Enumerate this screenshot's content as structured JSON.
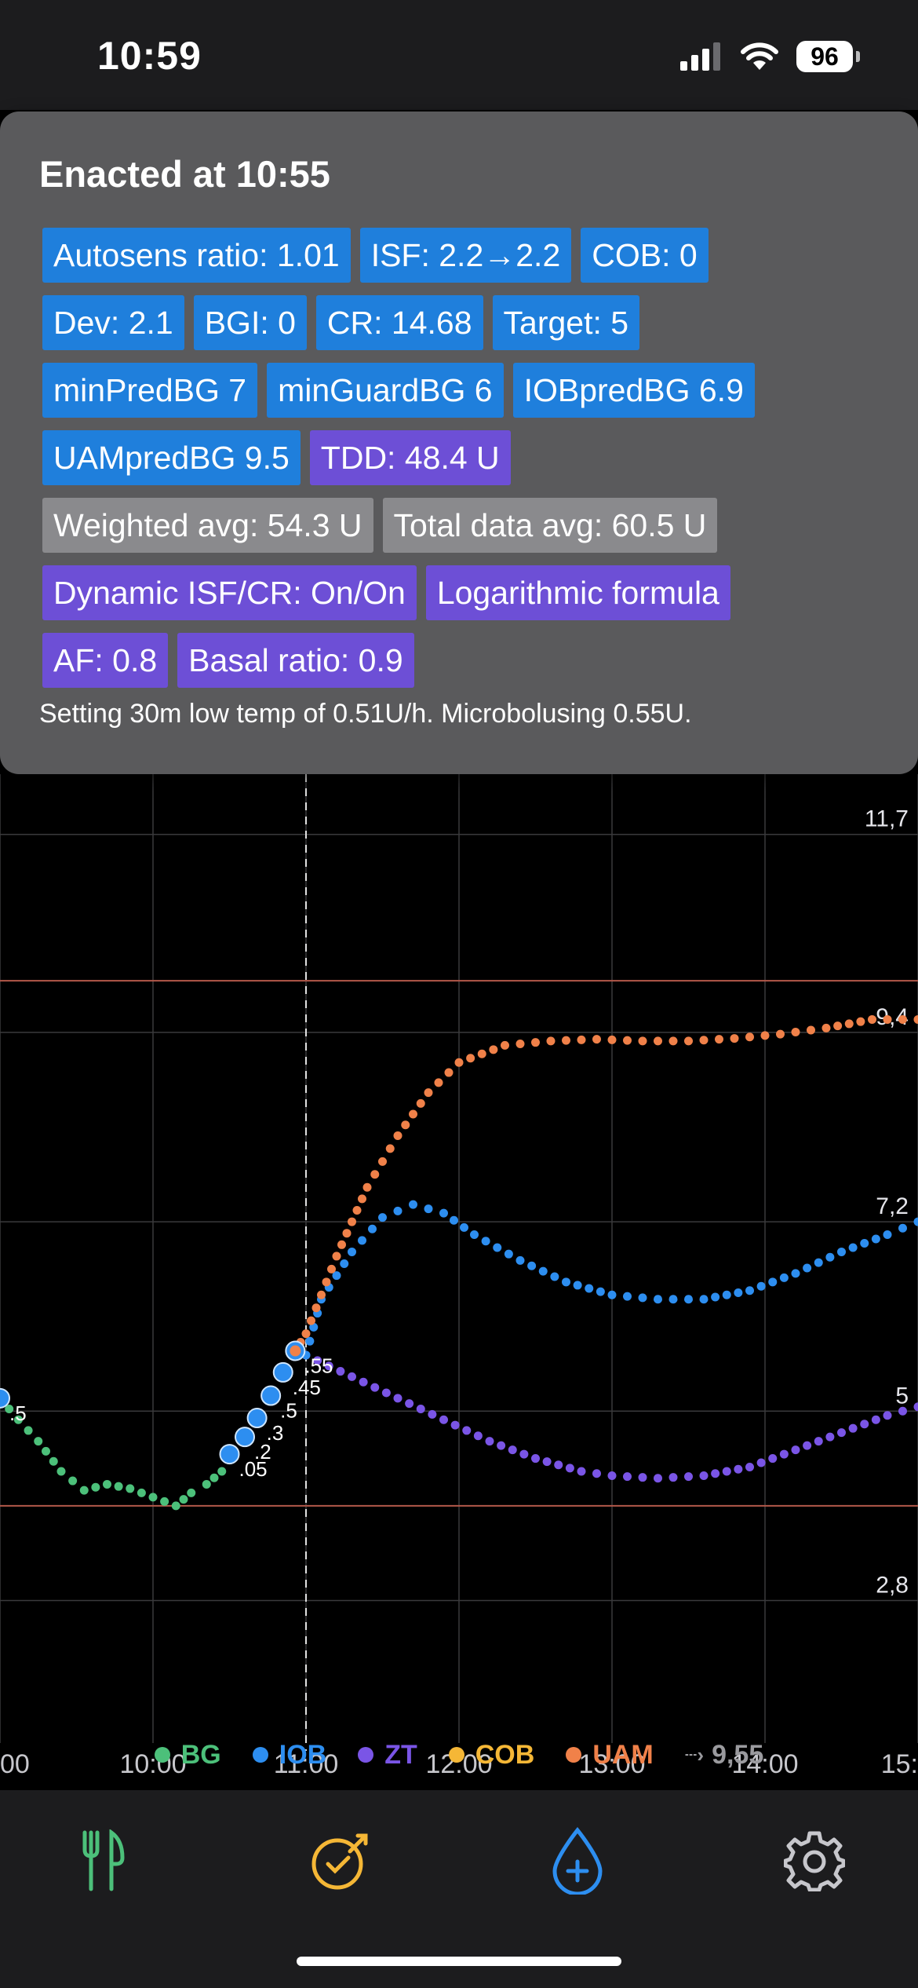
{
  "status_bar": {
    "time": "10:59",
    "battery": "96"
  },
  "popup": {
    "title": "Enacted at 10:55",
    "chip_rows": [
      [
        {
          "text": "Autosens ratio: 1.01",
          "color": "blue"
        },
        {
          "text": "ISF: 2.2→2.2",
          "color": "blue"
        },
        {
          "text": "COB: 0",
          "color": "blue"
        }
      ],
      [
        {
          "text": "Dev: 2.1",
          "color": "blue"
        },
        {
          "text": "BGI: 0",
          "color": "blue"
        },
        {
          "text": "CR: 14.68",
          "color": "blue"
        },
        {
          "text": "Target: 5",
          "color": "blue"
        }
      ],
      [
        {
          "text": "minPredBG 7",
          "color": "blue"
        },
        {
          "text": "minGuardBG 6",
          "color": "blue"
        },
        {
          "text": "IOBpredBG 6.9",
          "color": "blue"
        }
      ],
      [
        {
          "text": "UAMpredBG 9.5",
          "color": "blue"
        },
        {
          "text": "TDD: 48.4 U",
          "color": "purple"
        }
      ],
      [
        {
          "text": "Weighted avg: 54.3 U",
          "color": "gray"
        },
        {
          "text": "Total data avg: 60.5 U",
          "color": "gray"
        }
      ],
      [
        {
          "text": "Dynamic ISF/CR: On/On",
          "color": "purple"
        },
        {
          "text": "Logarithmic formula",
          "color": "purple"
        }
      ],
      [
        {
          "text": "AF: 0.8",
          "color": "purple"
        },
        {
          "text": "Basal ratio: 0.9",
          "color": "purple"
        }
      ]
    ],
    "reason": "Setting 30m low temp of 0.51U/h. Microbolusing 0.55U."
  },
  "chart_data": {
    "type": "scatter",
    "x_tick_labels": [
      "00",
      "10:00",
      "11:00",
      "12:00",
      "13:00",
      "14:00",
      "15:"
    ],
    "y_tick_labels": [
      {
        "value": 11.7,
        "label": "11,7"
      },
      {
        "value": 9.4,
        "label": "9,4"
      },
      {
        "value": 7.2,
        "label": "7,2"
      },
      {
        "value": 5,
        "label": "5"
      },
      {
        "value": 2.8,
        "label": "2,8"
      }
    ],
    "y_range": [
      1.6,
      12.4
    ],
    "x_range_hours": [
      9.0,
      15.0
    ],
    "target_range": [
      3.9,
      10.0
    ],
    "now_hour": 11.0,
    "bolus_labels": [
      ".5",
      ".05",
      ".2",
      ".3",
      ".5",
      ".45",
      ".55"
    ],
    "series": {
      "BG": [
        [
          9.0,
          5.15
        ],
        [
          9.12,
          4.9
        ],
        [
          9.25,
          4.65
        ],
        [
          9.4,
          4.3
        ],
        [
          9.55,
          4.08
        ],
        [
          9.7,
          4.15
        ],
        [
          9.85,
          4.1
        ],
        [
          10.0,
          4.0
        ],
        [
          10.15,
          3.9
        ],
        [
          10.25,
          4.05
        ],
        [
          10.35,
          4.15
        ],
        [
          10.45,
          4.3
        ]
      ],
      "IOB_markers": [
        [
          9.0,
          5.15
        ],
        [
          10.5,
          4.5
        ],
        [
          10.6,
          4.7
        ],
        [
          10.68,
          4.92
        ],
        [
          10.77,
          5.18
        ],
        [
          10.85,
          5.45
        ],
        [
          10.93,
          5.7
        ]
      ],
      "IOB": [
        [
          11.0,
          5.65
        ],
        [
          11.1,
          6.3
        ],
        [
          11.3,
          6.85
        ],
        [
          11.5,
          7.25
        ],
        [
          11.7,
          7.4
        ],
        [
          11.9,
          7.3
        ],
        [
          12.1,
          7.05
        ],
        [
          12.4,
          6.75
        ],
        [
          12.7,
          6.5
        ],
        [
          13.0,
          6.35
        ],
        [
          13.3,
          6.3
        ],
        [
          13.6,
          6.3
        ],
        [
          13.9,
          6.4
        ],
        [
          14.2,
          6.6
        ],
        [
          14.5,
          6.85
        ],
        [
          14.8,
          7.05
        ],
        [
          15.0,
          7.2
        ]
      ],
      "ZT": [
        [
          11.0,
          5.65
        ],
        [
          11.3,
          5.4
        ],
        [
          11.6,
          5.15
        ],
        [
          11.9,
          4.9
        ],
        [
          12.2,
          4.65
        ],
        [
          12.5,
          4.45
        ],
        [
          12.8,
          4.3
        ],
        [
          13.0,
          4.25
        ],
        [
          13.3,
          4.22
        ],
        [
          13.6,
          4.25
        ],
        [
          13.9,
          4.35
        ],
        [
          14.2,
          4.55
        ],
        [
          14.5,
          4.75
        ],
        [
          14.8,
          4.95
        ],
        [
          15.0,
          5.05
        ]
      ],
      "UAM": [
        [
          10.93,
          5.7
        ],
        [
          11.0,
          5.9
        ],
        [
          11.2,
          6.8
        ],
        [
          11.4,
          7.6
        ],
        [
          11.6,
          8.2
        ],
        [
          11.8,
          8.7
        ],
        [
          12.0,
          9.05
        ],
        [
          12.3,
          9.25
        ],
        [
          12.6,
          9.3
        ],
        [
          12.9,
          9.32
        ],
        [
          13.2,
          9.3
        ],
        [
          13.5,
          9.3
        ],
        [
          13.8,
          9.33
        ],
        [
          14.1,
          9.38
        ],
        [
          14.4,
          9.45
        ],
        [
          14.7,
          9.55
        ],
        [
          15.0,
          9.55
        ]
      ]
    }
  },
  "legend": [
    {
      "label": "BG",
      "color": "#4cc07a"
    },
    {
      "label": "IOB",
      "color": "#2d8ef0"
    },
    {
      "label": "ZT",
      "color": "#7a55e6"
    },
    {
      "label": "COB",
      "color": "#f5b736"
    },
    {
      "label": "UAM",
      "color": "#f08149"
    }
  ],
  "legend_extra": "9,55",
  "tabs": [
    {
      "icon": "fork-knife-icon",
      "color": "#4cc07a"
    },
    {
      "icon": "target-icon",
      "color": "#f5b736"
    },
    {
      "icon": "drop-plus-icon",
      "color": "#2d8ef0"
    },
    {
      "icon": "gear-icon",
      "color": "#c7c7cc"
    }
  ]
}
